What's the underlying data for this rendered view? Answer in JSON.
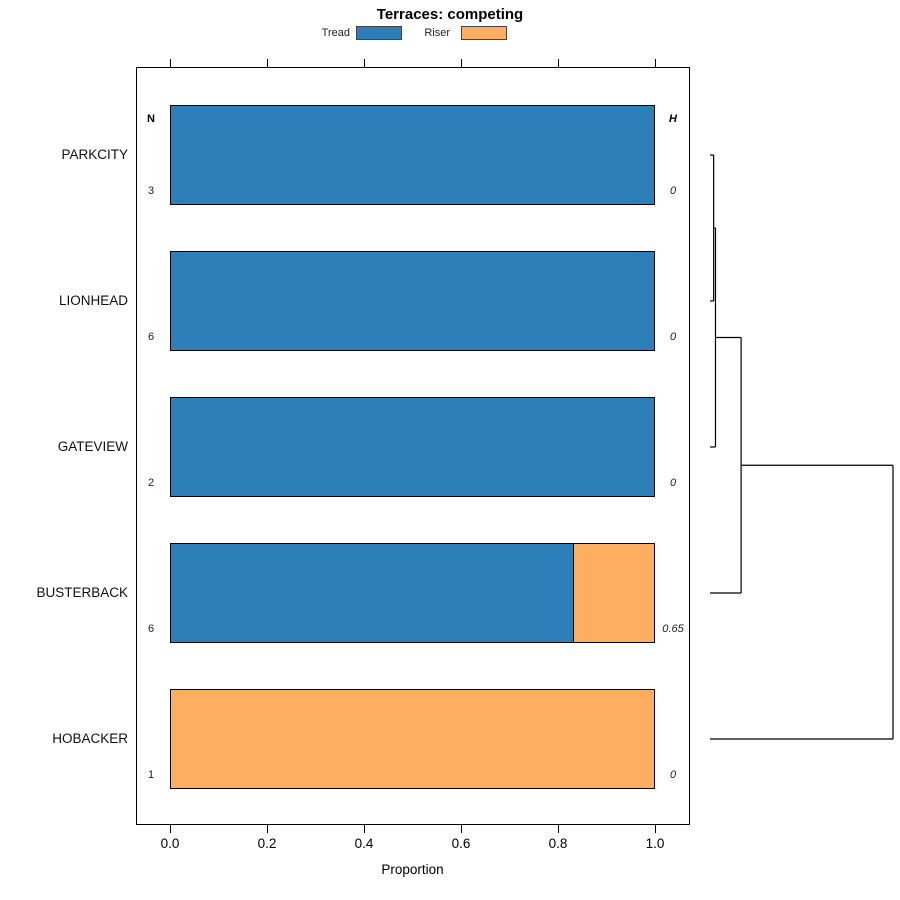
{
  "chart_data": {
    "type": "bar",
    "orientation": "horizontal",
    "stacked": true,
    "title": "Terraces: competing",
    "xlabel": "Proportion",
    "xlim": [
      0,
      1.08
    ],
    "xticks": [
      0,
      0.2,
      0.4,
      0.6,
      0.8,
      1.0
    ],
    "xtick_labels": [
      "0.0",
      "0.2",
      "0.4",
      "0.6",
      "0.8",
      "1.0"
    ],
    "grid": false,
    "legend": {
      "position": "top",
      "entries": [
        {
          "label": "Tread",
          "color": "#2C7FB8"
        },
        {
          "label": "Riser",
          "color": "#FDAE61"
        }
      ]
    },
    "columns": {
      "n_header": "N",
      "h_header": "H"
    },
    "categories": [
      "PARKCITY",
      "LIONHEAD",
      "GATEVIEW",
      "BUSTERBACK",
      "HOBACKER"
    ],
    "series": [
      {
        "name": "Tread",
        "values": [
          1.0,
          1.0,
          1.0,
          0.833,
          0.0
        ]
      },
      {
        "name": "Riser",
        "values": [
          0.0,
          0.0,
          0.0,
          0.167,
          1.0
        ]
      }
    ],
    "rows": [
      {
        "category": "PARKCITY",
        "n": "3",
        "h": "0",
        "tread": 1.0,
        "riser": 0.0
      },
      {
        "category": "LIONHEAD",
        "n": "6",
        "h": "0",
        "tread": 1.0,
        "riser": 0.0
      },
      {
        "category": "GATEVIEW",
        "n": "2",
        "h": "0",
        "tread": 1.0,
        "riser": 0.0
      },
      {
        "category": "BUSTERBACK",
        "n": "6",
        "h": "0.65",
        "tread": 0.833,
        "riser": 0.167
      },
      {
        "category": "HOBACKER",
        "n": "1",
        "h": "0",
        "tread": 0.0,
        "riser": 1.0
      }
    ],
    "dendrogram": {
      "side": "right",
      "leaf_order": [
        "PARKCITY",
        "LIONHEAD",
        "GATEVIEW",
        "BUSTERBACK",
        "HOBACKER"
      ],
      "merges": [
        {
          "a": "PARKCITY",
          "b": "LIONHEAD",
          "height": 0.02
        },
        {
          "a": "cluster0",
          "b": "GATEVIEW",
          "height": 0.03
        },
        {
          "a": "cluster1",
          "b": "BUSTERBACK",
          "height": 0.17
        },
        {
          "a": "cluster2",
          "b": "HOBACKER",
          "height": 1.0
        }
      ]
    }
  }
}
